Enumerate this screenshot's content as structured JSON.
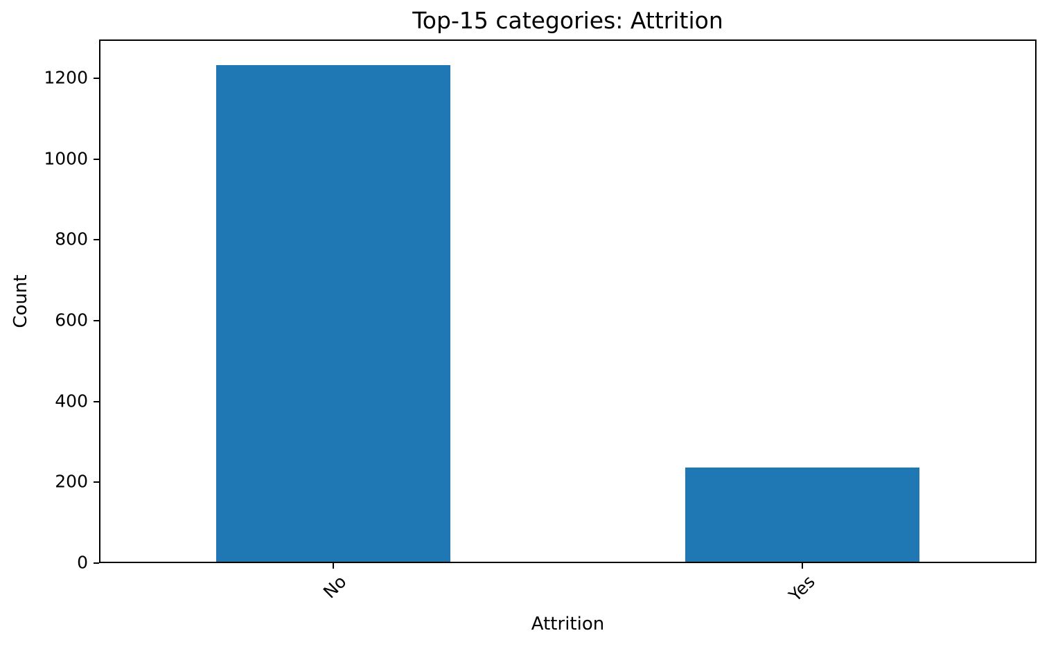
{
  "figure": {
    "background": "#ffffff",
    "text_color": "#000000"
  },
  "chart_data": {
    "type": "bar",
    "title": "Top-15 categories: Attrition",
    "xlabel": "Attrition",
    "ylabel": "Count",
    "categories": [
      "No",
      "Yes"
    ],
    "values": [
      1233,
      237
    ],
    "yticks": [
      0,
      200,
      400,
      600,
      800,
      1000,
      1200
    ],
    "ylim": [
      0,
      1296
    ],
    "bar_color": "#1f77b4",
    "bar_width_fraction": 0.5,
    "x_tick_rotation_deg": 45,
    "grid": false,
    "legend_position": "none"
  }
}
